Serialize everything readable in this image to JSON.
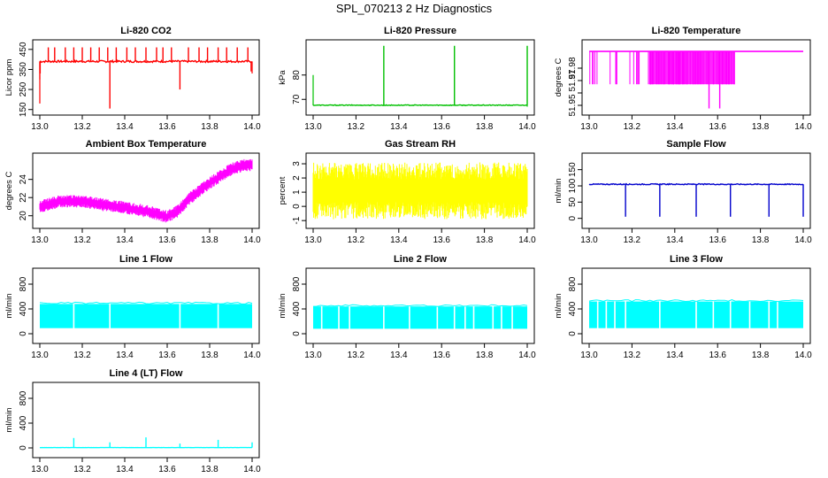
{
  "page_title": "SPL_070213  2 Hz Diagnostics",
  "colors": {
    "red": "#ff0000",
    "green": "#00c000",
    "magenta": "#ff00ff",
    "yellow": "#ffff00",
    "blue": "#0000cc",
    "cyan": "#00ffff",
    "axis": "#000000"
  },
  "chart_data": [
    {
      "id": "co2",
      "type": "line",
      "title": "Li-820 CO2",
      "ylabel": "Licor ppm",
      "color": "#ff0000",
      "xlim": [
        13.0,
        14.0
      ],
      "ylim": [
        140,
        480
      ],
      "xticks": [
        "13.0",
        "13.2",
        "13.4",
        "13.6",
        "13.8",
        "14.0"
      ],
      "yticks": [
        150,
        250,
        350,
        450
      ],
      "pattern": {
        "kind": "baseline_spikes",
        "base": 390,
        "noise": 10,
        "start": 13.0,
        "start_points": [
          [
            13.0,
            180
          ],
          [
            13.0,
            300
          ],
          [
            13.002,
            330
          ]
        ],
        "spikes": [
          [
            13.04,
            460
          ],
          [
            13.07,
            460
          ],
          [
            13.12,
            460
          ],
          [
            13.16,
            460
          ],
          [
            13.2,
            460
          ],
          [
            13.24,
            460
          ],
          [
            13.28,
            460
          ],
          [
            13.32,
            460
          ],
          [
            13.33,
            155
          ],
          [
            13.36,
            460
          ],
          [
            13.41,
            460
          ],
          [
            13.45,
            460
          ],
          [
            13.5,
            460
          ],
          [
            13.55,
            460
          ],
          [
            13.58,
            460
          ],
          [
            13.62,
            460
          ],
          [
            13.66,
            250
          ],
          [
            13.7,
            460
          ],
          [
            13.75,
            460
          ],
          [
            13.79,
            460
          ],
          [
            13.84,
            460
          ],
          [
            13.88,
            460
          ],
          [
            13.93,
            460
          ],
          [
            13.98,
            460
          ]
        ],
        "end_points": [
          [
            13.995,
            340
          ],
          [
            14.0,
            330
          ]
        ]
      }
    },
    {
      "id": "pressure",
      "type": "line",
      "title": "Li-820 Pressure",
      "ylabel": "kPa",
      "color": "#00c000",
      "xlim": [
        13.0,
        14.0
      ],
      "ylim": [
        65,
        93
      ],
      "xticks": [
        "13.0",
        "13.2",
        "13.4",
        "13.6",
        "13.8",
        "14.0"
      ],
      "yticks": [
        70,
        80
      ],
      "pattern": {
        "kind": "baseline_spikes",
        "base": 67.6,
        "noise": 0.3,
        "start": 13.0,
        "start_points": [
          [
            13.0,
            80
          ],
          [
            13.0,
            68
          ]
        ],
        "spikes": [
          [
            13.33,
            92
          ],
          [
            13.66,
            92
          ],
          [
            14.0,
            92
          ]
        ],
        "end_points": [
          [
            14.0,
            67
          ]
        ]
      }
    },
    {
      "id": "temperature",
      "type": "line",
      "title": "Li-820 Temperature",
      "ylabel": "degrees C",
      "color": "#ff00ff",
      "xlim": [
        13.0,
        14.0
      ],
      "ylim": [
        51.945,
        52.0
      ],
      "xticks": [
        "13.0",
        "13.2",
        "13.4",
        "13.6",
        "13.8",
        "14.0"
      ],
      "yticks": [
        51.95,
        51.96,
        51.97,
        51.98
      ],
      "ytick_labels": [
        "51.95",
        "",
        "51.97",
        "51.98"
      ],
      "pattern": {
        "kind": "dropouts",
        "base": 51.9935,
        "low": 51.967,
        "dense_range": [
          13.28,
          13.68
        ],
        "deep_drops": [
          [
            13.56,
            51.9475
          ],
          [
            13.61,
            51.9475
          ]
        ]
      }
    },
    {
      "id": "ambient",
      "type": "band",
      "title": "Ambient Box Temperature",
      "ylabel": "degrees C",
      "color": "#ff00ff",
      "xlim": [
        13.0,
        14.0
      ],
      "ylim": [
        19,
        26.5
      ],
      "xticks": [
        "13.0",
        "13.2",
        "13.4",
        "13.6",
        "13.8",
        "14.0"
      ],
      "yticks": [
        20,
        22,
        24
      ],
      "curve": [
        [
          13.0,
          21.0
        ],
        [
          13.1,
          21.6
        ],
        [
          13.2,
          21.6
        ],
        [
          13.3,
          21.2
        ],
        [
          13.4,
          20.9
        ],
        [
          13.5,
          20.5
        ],
        [
          13.6,
          19.9
        ],
        [
          13.65,
          20.5
        ],
        [
          13.7,
          21.8
        ],
        [
          13.8,
          23.6
        ],
        [
          13.9,
          25.1
        ],
        [
          13.95,
          25.5
        ],
        [
          14.0,
          25.6
        ]
      ],
      "band": 0.7
    },
    {
      "id": "rh",
      "type": "band",
      "title": "Gas Stream RH",
      "ylabel": "percent",
      "color": "#ffff00",
      "xlim": [
        13.0,
        14.0
      ],
      "ylim": [
        -1.3,
        3.5
      ],
      "xticks": [
        "13.0",
        "13.2",
        "13.4",
        "13.6",
        "13.8",
        "14.0"
      ],
      "yticks": [
        -1,
        0,
        1,
        2,
        3
      ],
      "curve": [
        [
          13.0,
          1.1
        ],
        [
          14.0,
          1.1
        ]
      ],
      "band": 2.0
    },
    {
      "id": "sample",
      "type": "line",
      "title": "Sample Flow",
      "ylabel": "ml/min",
      "color": "#0000cc",
      "xlim": [
        13.0,
        14.0
      ],
      "ylim": [
        -20,
        190
      ],
      "xticks": [
        "13.0",
        "13.2",
        "13.4",
        "13.6",
        "13.8",
        "14.0"
      ],
      "yticks": [
        0,
        50,
        100,
        150
      ],
      "pattern": {
        "kind": "baseline_spikes",
        "base": 105,
        "noise": 3,
        "start": 13.0,
        "start_points": [],
        "spikes": [
          [
            13.17,
            5
          ],
          [
            13.33,
            5
          ],
          [
            13.5,
            5
          ],
          [
            13.66,
            5
          ],
          [
            13.84,
            5
          ],
          [
            14.0,
            5
          ]
        ],
        "end_points": []
      }
    },
    {
      "id": "line1",
      "type": "block",
      "title": "Line 1 Flow",
      "ylabel": "ml/min",
      "color": "#00ffff",
      "xlim": [
        13.0,
        14.0
      ],
      "ylim": [
        -100,
        1000
      ],
      "xticks": [
        "13.0",
        "13.2",
        "13.4",
        "13.6",
        "13.8",
        "14.0"
      ],
      "yticks": [
        0,
        400,
        800
      ],
      "ytick_labels": [
        "0",
        "400",
        "800"
      ],
      "block": {
        "low": 90,
        "high": 480,
        "gaps": [
          13.16,
          13.33,
          13.66,
          13.84
        ]
      }
    },
    {
      "id": "line2",
      "type": "block",
      "title": "Line 2 Flow",
      "ylabel": "ml/min",
      "color": "#00ffff",
      "xlim": [
        13.0,
        14.0
      ],
      "ylim": [
        -100,
        1000
      ],
      "xticks": [
        "13.0",
        "13.2",
        "13.4",
        "13.6",
        "13.8",
        "14.0"
      ],
      "yticks": [
        0,
        400,
        800
      ],
      "ytick_labels": [
        "0",
        "400",
        "800"
      ],
      "block": {
        "low": 80,
        "high": 440,
        "gaps": [
          13.04,
          13.12,
          13.17,
          13.33,
          13.45,
          13.58,
          13.66,
          13.71,
          13.75,
          13.84,
          13.88,
          13.93
        ]
      }
    },
    {
      "id": "line3",
      "type": "block",
      "title": "Line 3 Flow",
      "ylabel": "ml/min",
      "color": "#00ffff",
      "xlim": [
        13.0,
        14.0
      ],
      "ylim": [
        -100,
        1000
      ],
      "xticks": [
        "13.0",
        "13.2",
        "13.4",
        "13.6",
        "13.8",
        "14.0"
      ],
      "yticks": [
        0,
        400,
        800
      ],
      "ytick_labels": [
        "0",
        "400",
        "800"
      ],
      "block": {
        "low": 90,
        "high": 520,
        "gaps": [
          13.04,
          13.08,
          13.12,
          13.17,
          13.33,
          13.5,
          13.58,
          13.66,
          13.75,
          13.84,
          13.88
        ]
      }
    },
    {
      "id": "line4",
      "type": "line",
      "title": "Line 4 (LT) Flow",
      "ylabel": "ml/min",
      "color": "#00ffff",
      "xlim": [
        13.0,
        14.0
      ],
      "ylim": [
        -100,
        1000
      ],
      "xticks": [
        "13.0",
        "13.2",
        "13.4",
        "13.6",
        "13.8",
        "14.0"
      ],
      "yticks": [
        0,
        400,
        800
      ],
      "ytick_labels": [
        "0",
        "400",
        "800"
      ],
      "pattern": {
        "kind": "baseline_spikes",
        "base": 5,
        "noise": 2,
        "start": 13.0,
        "start_points": [],
        "spikes": [
          [
            13.16,
            160
          ],
          [
            13.33,
            90
          ],
          [
            13.5,
            170
          ],
          [
            13.66,
            70
          ],
          [
            13.84,
            130
          ],
          [
            14.0,
            90
          ]
        ],
        "end_points": []
      }
    }
  ]
}
